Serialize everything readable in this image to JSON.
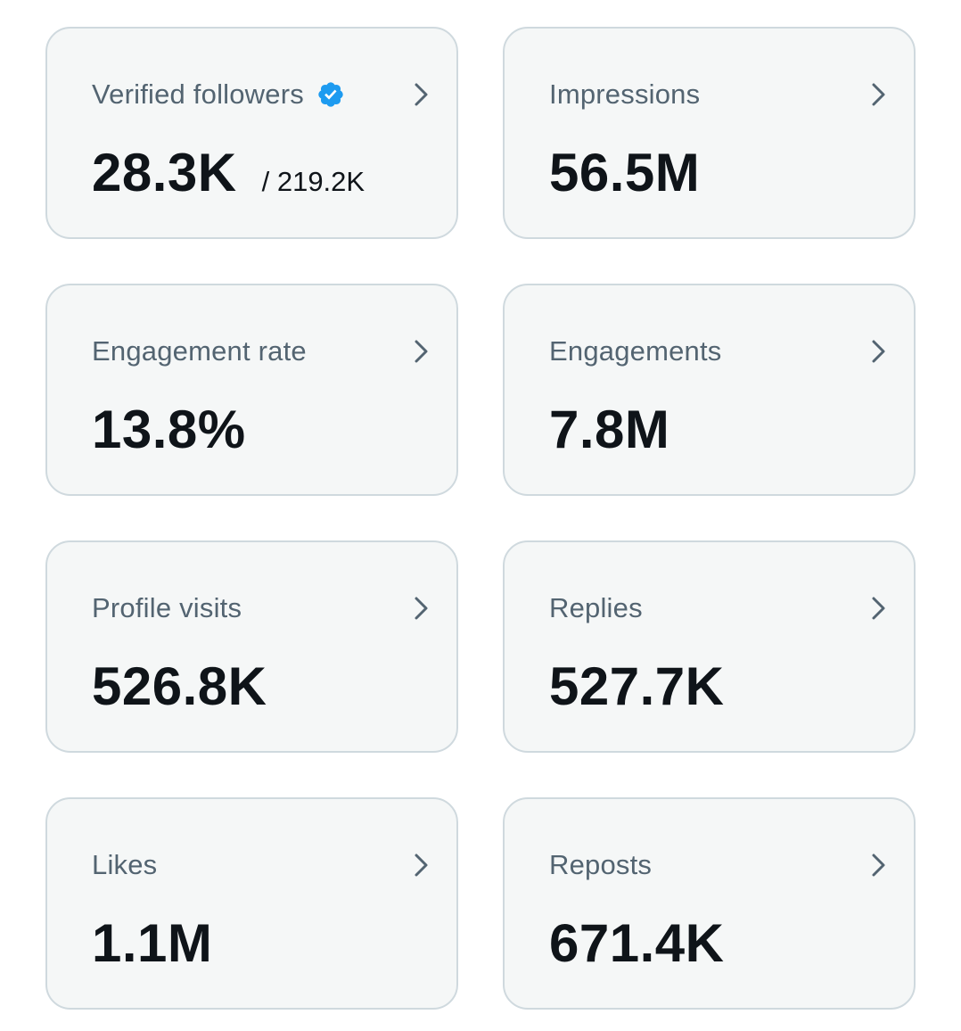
{
  "icons": {
    "chevron": "chevron-right-icon",
    "verified": "verified-badge-icon"
  },
  "colors": {
    "card_background": "#f5f7f7",
    "card_border": "#cfd9de",
    "label_text": "#536471",
    "value_text": "#0f1419",
    "verified_badge": "#1d9bf0",
    "chevron": "#536471"
  },
  "cards": [
    {
      "label": "Verified followers",
      "value": "28.3K",
      "total": "/ 219.2K"
    },
    {
      "label": "Impressions",
      "value": "56.5M"
    },
    {
      "label": "Engagement rate",
      "value": "13.8%"
    },
    {
      "label": "Engagements",
      "value": "7.8M"
    },
    {
      "label": "Profile visits",
      "value": "526.8K"
    },
    {
      "label": "Replies",
      "value": "527.7K"
    },
    {
      "label": "Likes",
      "value": "1.1M"
    },
    {
      "label": "Reposts",
      "value": "671.4K"
    }
  ]
}
